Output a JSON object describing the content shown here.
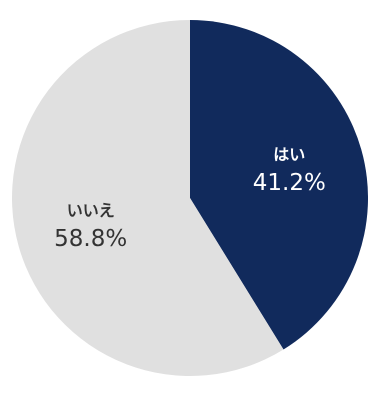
{
  "chart_data": {
    "type": "pie",
    "title": "",
    "slices": [
      {
        "label": "はい",
        "value": 41.2,
        "value_text": "41.2%",
        "color": "#112a5c",
        "text_color": "#ffffff"
      },
      {
        "label": "いいえ",
        "value": 58.8,
        "value_text": "58.8%",
        "color": "#e0e0e0",
        "text_color": "#333333"
      }
    ],
    "start_angle_deg": 0,
    "direction": "clockwise",
    "legend": "none"
  }
}
